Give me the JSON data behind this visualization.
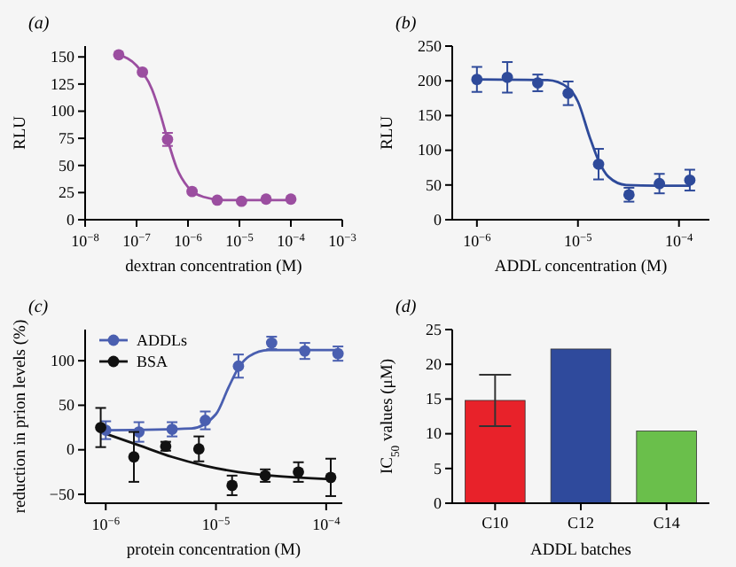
{
  "chart_data": [
    {
      "type": "scatter",
      "title": "(a)",
      "xlabel": "dextran concentration (M)",
      "ylabel": "RLU",
      "log": "x",
      "xlim": [
        1e-08,
        0.001
      ],
      "xticks": [
        {
          "value": 1e-08,
          "label": "10$^{−8}$"
        },
        {
          "value": 1e-07,
          "label": "10$^{−7}$"
        },
        {
          "value": 1e-06,
          "label": "10$^{−6}$"
        },
        {
          "value": 1e-05,
          "label": "10$^{−5}$"
        },
        {
          "value": 0.0001,
          "label": "10$^{−4}$"
        },
        {
          "value": 0.001,
          "label": "10$^{−3}$"
        }
      ],
      "ylim": [
        0,
        160
      ],
      "yticks": [
        0,
        25,
        50,
        75,
        100,
        125,
        150
      ],
      "series": [
        {
          "type": "line",
          "marker": "none",
          "color": "#9b4ea0",
          "x": [
            4.5e-08,
            1e-07,
            2e-07,
            3e-07,
            4e-07,
            6e-07,
            1e-06,
            2e-06,
            5e-06,
            1e-05,
            0.0001
          ],
          "values": [
            152,
            142,
            120,
            95,
            74,
            48,
            30,
            21,
            18,
            18,
            18
          ]
        },
        {
          "type": "scatter",
          "marker": "circle",
          "color": "#9b4ea0",
          "x": [
            4.5e-08,
            1.3e-07,
            4e-07,
            1.2e-06,
            3.7e-06,
            1.1e-05,
            3.3e-05,
            0.0001
          ],
          "values": [
            152,
            136,
            74,
            26,
            18,
            17,
            19,
            19
          ],
          "errors": [
            null,
            null,
            6,
            null,
            null,
            null,
            null,
            null
          ]
        }
      ]
    },
    {
      "type": "scatter",
      "title": "(b)",
      "xlabel": "ADDL concentration (M)",
      "ylabel": "RLU",
      "log": "x",
      "xlim": [
        5.7e-07,
        0.0002
      ],
      "xticks": [
        {
          "value": 1e-06,
          "label": "10$^{−6}$"
        },
        {
          "value": 1e-05,
          "label": "10$^{−5}$"
        },
        {
          "value": 0.0001,
          "label": "10$^{−4}$"
        }
      ],
      "ylim": [
        0,
        250
      ],
      "yticks": [
        0,
        50,
        100,
        150,
        200,
        250
      ],
      "series": [
        {
          "type": "line",
          "marker": "none",
          "color": "#2e4a9a",
          "x": [
            1e-06,
            5e-06,
            8e-06,
            1e-05,
            1.3e-05,
            1.6e-05,
            2e-05,
            3e-05,
            6e-05,
            0.00013
          ],
          "values": [
            202,
            201,
            190,
            170,
            120,
            85,
            62,
            50,
            49,
            49
          ]
        },
        {
          "type": "scatter",
          "marker": "circle",
          "color": "#2e4a9a",
          "x": [
            1e-06,
            2e-06,
            4e-06,
            8e-06,
            1.6e-05,
            3.2e-05,
            6.4e-05,
            0.000128
          ],
          "values": [
            202,
            205,
            197,
            182,
            80,
            36,
            52,
            57
          ],
          "errors": [
            18,
            22,
            12,
            17,
            22,
            10,
            14,
            15
          ]
        }
      ]
    },
    {
      "type": "scatter",
      "title": "(c)",
      "xlabel": "protein concentration (M)",
      "ylabel": "reduction in prion levels (%)",
      "log": "x",
      "legend": "top left",
      "xlim": [
        6.5e-07,
        0.00014
      ],
      "xticks": [
        {
          "value": 1e-06,
          "label": "10$^{−6}$"
        },
        {
          "value": 1e-05,
          "label": "10$^{−5}$"
        },
        {
          "value": 0.0001,
          "label": "10$^{−4}$"
        }
      ],
      "ylim": [
        -60,
        135
      ],
      "yticks": [
        {
          "value": -50,
          "label": "−50"
        },
        0,
        50,
        100
      ],
      "series": [
        {
          "type": "line",
          "marker": "none",
          "color": "#4a5fb0",
          "x": [
            1e-06,
            6e-06,
            1e-05,
            1.3e-05,
            1.6e-05,
            2e-05,
            3e-05,
            6e-05,
            0.000128
          ],
          "values": [
            22,
            24,
            40,
            70,
            92,
            105,
            112,
            112,
            112
          ]
        },
        {
          "type": "line",
          "marker": "none",
          "color": "#111111",
          "x": [
            9e-07,
            2e-06,
            4e-06,
            8e-06,
            1.6e-05,
            3.2e-05,
            0.00011
          ],
          "values": [
            20,
            5,
            -8,
            -18,
            -25,
            -29,
            -33
          ]
        },
        {
          "type": "scatter",
          "marker": "circle",
          "name": "ADDLs",
          "color": "#4a5fb0",
          "x": [
            1e-06,
            2e-06,
            4e-06,
            8e-06,
            1.6e-05,
            3.2e-05,
            6.4e-05,
            0.000128
          ],
          "values": [
            22,
            20,
            23,
            33,
            94,
            120,
            111,
            108
          ],
          "errors": [
            10,
            11,
            8,
            10,
            13,
            7,
            9,
            8
          ]
        },
        {
          "type": "scatter",
          "marker": "circle",
          "name": "BSA",
          "color": "#111111",
          "x": [
            9e-07,
            1.8e-06,
            3.5e-06,
            7e-06,
            1.4e-05,
            2.8e-05,
            5.6e-05,
            0.00011
          ],
          "values": [
            25,
            -8,
            4,
            1,
            -40,
            -29,
            -25,
            -31
          ],
          "errors": [
            22,
            28,
            5,
            14,
            11,
            7,
            11,
            21
          ]
        }
      ]
    },
    {
      "type": "bar",
      "title": "(d)",
      "xlabel": "ADDL batches",
      "ylabel": "IC$_{50}$ values (μM)",
      "categories": [
        "C10",
        "C12",
        "C14"
      ],
      "values": [
        14.8,
        22.2,
        10.4
      ],
      "colors": [
        "#e8222a",
        "#2f4a9c",
        "#6abf4b"
      ],
      "errors": [
        [
          11.1,
          18.5
        ],
        null,
        null
      ],
      "ylim": [
        0,
        25
      ],
      "yticks": [
        0,
        5,
        10,
        15,
        20,
        25
      ]
    }
  ]
}
